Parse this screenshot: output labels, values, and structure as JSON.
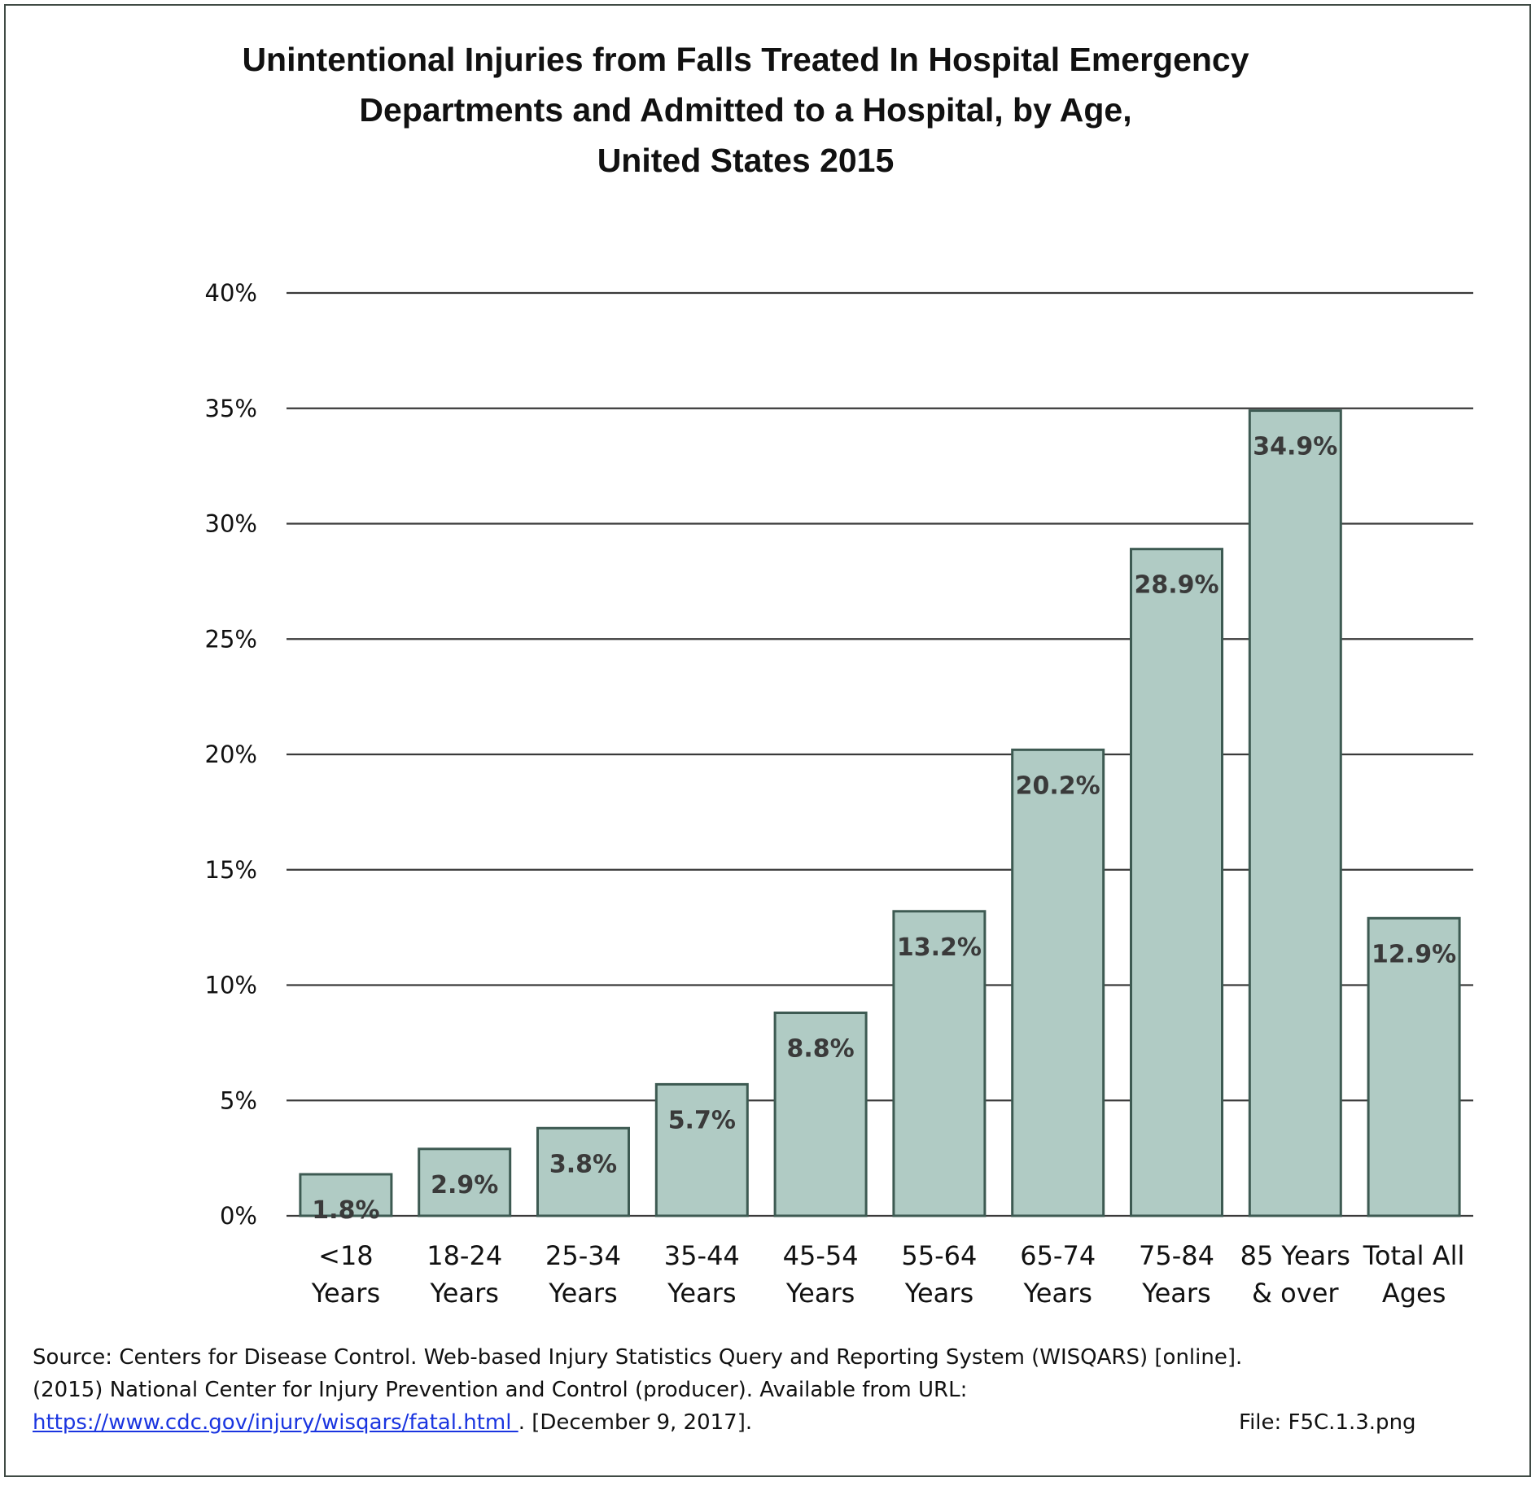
{
  "title_lines": [
    "Unintentional Injuries from Falls Treated In Hospital Emergency",
    "Departments and Admitted to a Hospital, by Age,",
    "United States 2015"
  ],
  "chart_data": {
    "type": "bar",
    "title": "Unintentional Injuries from Falls Treated In Hospital Emergency Departments and Admitted to a Hospital, by Age, United States 2015",
    "categories": [
      [
        "<18",
        "Years"
      ],
      [
        "18-24",
        "Years"
      ],
      [
        "25-34",
        "Years"
      ],
      [
        "35-44",
        "Years"
      ],
      [
        "45-54",
        "Years"
      ],
      [
        "55-64",
        "Years"
      ],
      [
        "65-74",
        "Years"
      ],
      [
        "75-84",
        "Years"
      ],
      [
        "85 Years",
        "& over"
      ],
      [
        "Total All",
        "Ages"
      ]
    ],
    "values": [
      1.8,
      2.9,
      3.8,
      5.7,
      8.8,
      13.2,
      20.2,
      28.9,
      34.9,
      12.9
    ],
    "data_labels": [
      "1.8%",
      "2.9%",
      "3.8%",
      "5.7%",
      "8.8%",
      "13.2%",
      "20.2%",
      "28.9%",
      "34.9%",
      "12.9%"
    ],
    "ylim": [
      0,
      40
    ],
    "yticks": [
      "0%",
      "5%",
      "10%",
      "15%",
      "20%",
      "25%",
      "30%",
      "35%",
      "40%"
    ],
    "grid": true,
    "legend": "none",
    "bar_color": "#b0cbc4",
    "bar_edge_color": "#3d5a52"
  },
  "source": {
    "line1": "Source: Centers for Disease Control. Web-based Injury Statistics Query and Reporting System (WISQARS) [online].",
    "line2": "(2015) National Center for Injury Prevention and Control (producer).  Available from URL:",
    "url": "https://www.cdc.gov/injury/wisqars/fatal.html ",
    "date": ".  [December 9, 2017]."
  },
  "file_label": "File: F5C.1.3.png"
}
